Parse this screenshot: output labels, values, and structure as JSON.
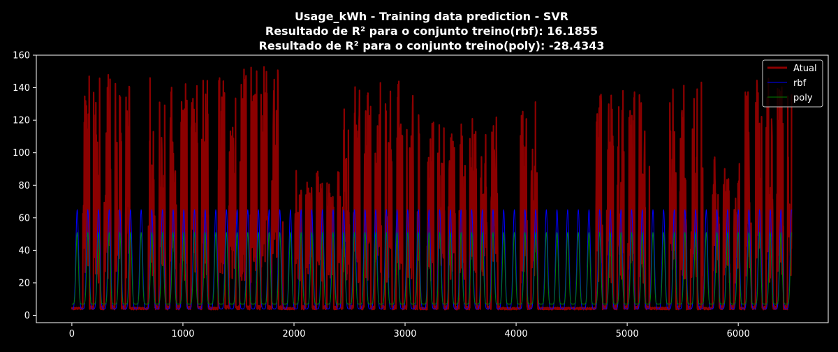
{
  "chart_data": {
    "type": "line",
    "title_lines": [
      "Usage_kWh - Training data prediction - SVR",
      "Resultado de R² para o conjunto treino(rbf):  16.1855",
      "Resultado de R² para o conjunto treino(poly): -28.4343"
    ],
    "xlabel": "",
    "ylabel": "",
    "xlim": [
      -320,
      6810
    ],
    "ylim": [
      -4.5,
      160
    ],
    "xticks": [
      0,
      1000,
      2000,
      3000,
      4000,
      5000,
      6000
    ],
    "yticks": [
      0,
      20,
      40,
      60,
      80,
      100,
      120,
      140,
      160
    ],
    "grid": false,
    "legend_placement": "top-right",
    "background": "#000000",
    "foreground": "#ffffff",
    "x_extent": [
      0,
      6480
    ],
    "series": [
      {
        "name": "Atual",
        "color": "#8b0000",
        "baseline": 3.5,
        "cycle_period": 96,
        "busy_days": [
          {
            "start": 100,
            "end": 520,
            "peak": 148
          },
          {
            "start": 690,
            "end": 1240,
            "peak": 150
          },
          {
            "start": 1320,
            "end": 1900,
            "peak": 153
          },
          {
            "start": 2010,
            "end": 2420,
            "peak": 90
          },
          {
            "start": 2440,
            "end": 3130,
            "peak": 144
          },
          {
            "start": 3200,
            "end": 3850,
            "peak": 125
          },
          {
            "start": 4040,
            "end": 4200,
            "peak": 134
          },
          {
            "start": 4720,
            "end": 5200,
            "peak": 140
          },
          {
            "start": 5380,
            "end": 5680,
            "peak": 144
          },
          {
            "start": 5770,
            "end": 6010,
            "peak": 98
          },
          {
            "start": 6060,
            "end": 6480,
            "peak": 146
          }
        ]
      },
      {
        "name": "rbf",
        "color": "#0000ff",
        "min": 4,
        "max": 65,
        "cycle_period": 96,
        "x_start": 0,
        "x_end": 6480
      },
      {
        "name": "poly",
        "color": "#008000",
        "min": 7,
        "max": 51,
        "cycle_period": 96,
        "x_start": 0,
        "x_end": 6480
      }
    ]
  }
}
